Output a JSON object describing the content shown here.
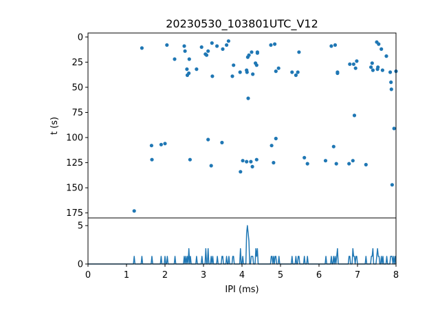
{
  "chart_data": [
    {
      "type": "scatter",
      "title": "20230530_103801UTC_V12",
      "xlabel": "",
      "ylabel": "t (s)",
      "xlim": [
        0,
        8
      ],
      "ylim": [
        180,
        -4
      ],
      "y_inverted": true,
      "yticks": [
        0,
        25,
        50,
        75,
        100,
        125,
        150,
        175
      ],
      "grid": false,
      "color": "#1f77b4",
      "points": [
        [
          1.2,
          173
        ],
        [
          1.4,
          11
        ],
        [
          1.65,
          108
        ],
        [
          1.66,
          122
        ],
        [
          1.9,
          107
        ],
        [
          2.0,
          106
        ],
        [
          2.05,
          8
        ],
        [
          2.25,
          22
        ],
        [
          2.5,
          9
        ],
        [
          2.52,
          14
        ],
        [
          2.57,
          32
        ],
        [
          2.58,
          38
        ],
        [
          2.62,
          36
        ],
        [
          2.63,
          22
        ],
        [
          2.65,
          122
        ],
        [
          2.82,
          32
        ],
        [
          2.95,
          10
        ],
        [
          3.05,
          17
        ],
        [
          3.08,
          18
        ],
        [
          3.12,
          102
        ],
        [
          3.12,
          14
        ],
        [
          3.2,
          128
        ],
        [
          3.22,
          6
        ],
        [
          3.23,
          39
        ],
        [
          3.35,
          9
        ],
        [
          3.48,
          105
        ],
        [
          3.5,
          12
        ],
        [
          3.6,
          8
        ],
        [
          3.65,
          4
        ],
        [
          3.75,
          39
        ],
        [
          3.78,
          28
        ],
        [
          3.95,
          35
        ],
        [
          3.96,
          134
        ],
        [
          4.02,
          123
        ],
        [
          4.12,
          33
        ],
        [
          4.12,
          124
        ],
        [
          4.13,
          35
        ],
        [
          4.15,
          20
        ],
        [
          4.16,
          61
        ],
        [
          4.18,
          18
        ],
        [
          4.23,
          124
        ],
        [
          4.25,
          15
        ],
        [
          4.27,
          129
        ],
        [
          4.28,
          37
        ],
        [
          4.35,
          26
        ],
        [
          4.38,
          122
        ],
        [
          4.4,
          16
        ],
        [
          4.4,
          15
        ],
        [
          4.38,
          28
        ],
        [
          4.75,
          8
        ],
        [
          4.77,
          108
        ],
        [
          4.82,
          125
        ],
        [
          4.85,
          7
        ],
        [
          4.88,
          101
        ],
        [
          4.88,
          34
        ],
        [
          4.95,
          31
        ],
        [
          5.3,
          35
        ],
        [
          5.4,
          38
        ],
        [
          5.45,
          35
        ],
        [
          5.48,
          15
        ],
        [
          5.62,
          120
        ],
        [
          5.7,
          126
        ],
        [
          6.17,
          123
        ],
        [
          6.32,
          9
        ],
        [
          6.38,
          109
        ],
        [
          6.42,
          8
        ],
        [
          6.45,
          126
        ],
        [
          6.48,
          36
        ],
        [
          6.48,
          35
        ],
        [
          6.78,
          126
        ],
        [
          6.8,
          27
        ],
        [
          6.88,
          123
        ],
        [
          6.9,
          27
        ],
        [
          6.92,
          78
        ],
        [
          6.95,
          31
        ],
        [
          6.98,
          24
        ],
        [
          7.22,
          127
        ],
        [
          7.35,
          30
        ],
        [
          7.38,
          26
        ],
        [
          7.4,
          33
        ],
        [
          7.5,
          5
        ],
        [
          7.52,
          32
        ],
        [
          7.53,
          30
        ],
        [
          7.55,
          7
        ],
        [
          7.62,
          12
        ],
        [
          7.65,
          33
        ],
        [
          7.75,
          19
        ],
        [
          7.85,
          35
        ],
        [
          7.87,
          45
        ],
        [
          7.88,
          52
        ],
        [
          7.9,
          147
        ],
        [
          7.95,
          91
        ],
        [
          8.0,
          34
        ]
      ]
    },
    {
      "type": "line",
      "title": "",
      "xlabel": "IPI (ms)",
      "ylabel": "",
      "xlim": [
        0,
        8
      ],
      "ylim": [
        0,
        6
      ],
      "xticks": [
        0,
        1,
        2,
        3,
        4,
        5,
        6,
        7,
        8
      ],
      "yticks": [
        0,
        5
      ],
      "grid": false,
      "color": "#1f77b4",
      "bin_width": 0.02,
      "spikes": [
        [
          1.2,
          1
        ],
        [
          1.4,
          1
        ],
        [
          1.66,
          1
        ],
        [
          1.9,
          1
        ],
        [
          2.0,
          1
        ],
        [
          2.06,
          1
        ],
        [
          2.26,
          1
        ],
        [
          2.5,
          1
        ],
        [
          2.54,
          1
        ],
        [
          2.58,
          1
        ],
        [
          2.62,
          2
        ],
        [
          2.66,
          1
        ],
        [
          2.82,
          1
        ],
        [
          2.96,
          1
        ],
        [
          3.06,
          2
        ],
        [
          3.12,
          2
        ],
        [
          3.2,
          1
        ],
        [
          3.24,
          1
        ],
        [
          3.36,
          1
        ],
        [
          3.48,
          1
        ],
        [
          3.5,
          1
        ],
        [
          3.6,
          1
        ],
        [
          3.66,
          1
        ],
        [
          3.76,
          1
        ],
        [
          3.78,
          1
        ],
        [
          3.96,
          2
        ],
        [
          4.02,
          1
        ],
        [
          4.12,
          4
        ],
        [
          4.14,
          5
        ],
        [
          4.16,
          4
        ],
        [
          4.18,
          3
        ],
        [
          4.24,
          1
        ],
        [
          4.26,
          1
        ],
        [
          4.28,
          1
        ],
        [
          4.36,
          2
        ],
        [
          4.38,
          1
        ],
        [
          4.4,
          2
        ],
        [
          4.76,
          1
        ],
        [
          4.78,
          1
        ],
        [
          4.82,
          1
        ],
        [
          4.86,
          1
        ],
        [
          4.88,
          1
        ],
        [
          4.96,
          1
        ],
        [
          5.3,
          1
        ],
        [
          5.4,
          1
        ],
        [
          5.46,
          1
        ],
        [
          5.48,
          1
        ],
        [
          5.62,
          1
        ],
        [
          5.7,
          1
        ],
        [
          6.18,
          1
        ],
        [
          6.32,
          1
        ],
        [
          6.38,
          1
        ],
        [
          6.42,
          1
        ],
        [
          6.46,
          1
        ],
        [
          6.48,
          2
        ],
        [
          6.78,
          1
        ],
        [
          6.8,
          1
        ],
        [
          6.88,
          2
        ],
        [
          6.9,
          1
        ],
        [
          6.92,
          1
        ],
        [
          6.96,
          1
        ],
        [
          6.98,
          1
        ],
        [
          7.22,
          1
        ],
        [
          7.36,
          1
        ],
        [
          7.38,
          1
        ],
        [
          7.4,
          2
        ],
        [
          7.5,
          1
        ],
        [
          7.52,
          2
        ],
        [
          7.54,
          1
        ],
        [
          7.56,
          1
        ],
        [
          7.62,
          1
        ],
        [
          7.66,
          1
        ],
        [
          7.76,
          1
        ],
        [
          7.86,
          1
        ],
        [
          7.88,
          1
        ],
        [
          7.9,
          1
        ],
        [
          7.94,
          1
        ],
        [
          7.98,
          1
        ]
      ]
    }
  ]
}
